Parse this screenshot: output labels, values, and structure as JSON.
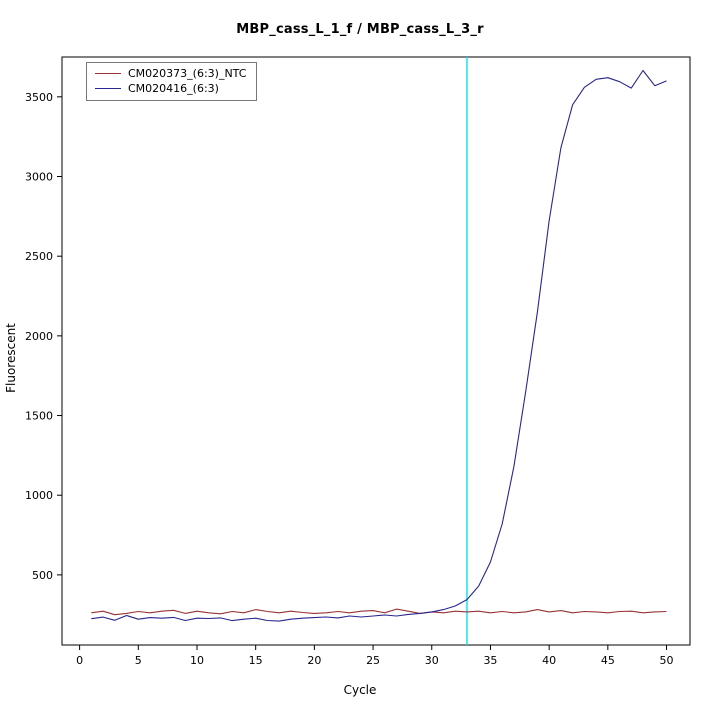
{
  "title": "MBP_cass_L_1_f / MBP_cass_L_3_r",
  "chart_data": {
    "type": "line",
    "title": "MBP_cass_L_1_f / MBP_cass_L_3_r",
    "xlabel": "Cycle",
    "ylabel": "Fluorescent",
    "x_ticks": [
      0,
      5,
      10,
      15,
      20,
      25,
      30,
      35,
      40,
      45,
      50
    ],
    "y_ticks": [
      500,
      1000,
      1500,
      2000,
      2500,
      3000,
      3500
    ],
    "xlim": [
      -1.5,
      52
    ],
    "ylim": [
      60,
      3750
    ],
    "grid": false,
    "legend_position": "top-left",
    "threshold_line": {
      "x": 33,
      "color": "#00e5ee",
      "label": "threshold-cycle-marker"
    },
    "cycles": [
      1,
      2,
      3,
      4,
      5,
      6,
      7,
      8,
      9,
      10,
      11,
      12,
      13,
      14,
      15,
      16,
      17,
      18,
      19,
      20,
      21,
      22,
      23,
      24,
      25,
      26,
      27,
      28,
      29,
      30,
      31,
      32,
      33,
      34,
      35,
      36,
      37,
      38,
      39,
      40,
      41,
      42,
      43,
      44,
      45,
      46,
      47,
      48,
      49,
      50
    ],
    "series": [
      {
        "name": "CM020373_(6:3)_NTC",
        "color": "#993333",
        "values": [
          262,
          272,
          250,
          258,
          270,
          262,
          272,
          278,
          258,
          272,
          262,
          256,
          270,
          262,
          282,
          270,
          262,
          272,
          264,
          258,
          262,
          270,
          262,
          272,
          276,
          262,
          285,
          272,
          258,
          268,
          262,
          272,
          268,
          272,
          262,
          270,
          262,
          268,
          282,
          268,
          276,
          262,
          270,
          268,
          262,
          270,
          272,
          262,
          268,
          270
        ]
      },
      {
        "name": "CM020416_(6:3)",
        "color": "#27278f",
        "values": [
          225,
          235,
          215,
          245,
          222,
          232,
          228,
          233,
          214,
          228,
          226,
          230,
          213,
          222,
          228,
          214,
          210,
          222,
          228,
          232,
          236,
          230,
          242,
          236,
          242,
          248,
          242,
          252,
          258,
          268,
          282,
          305,
          345,
          430,
          580,
          820,
          1180,
          1650,
          2150,
          2720,
          3180,
          3450,
          3560,
          3610,
          3620,
          3595,
          3555,
          3665,
          3570,
          3600
        ]
      }
    ]
  }
}
